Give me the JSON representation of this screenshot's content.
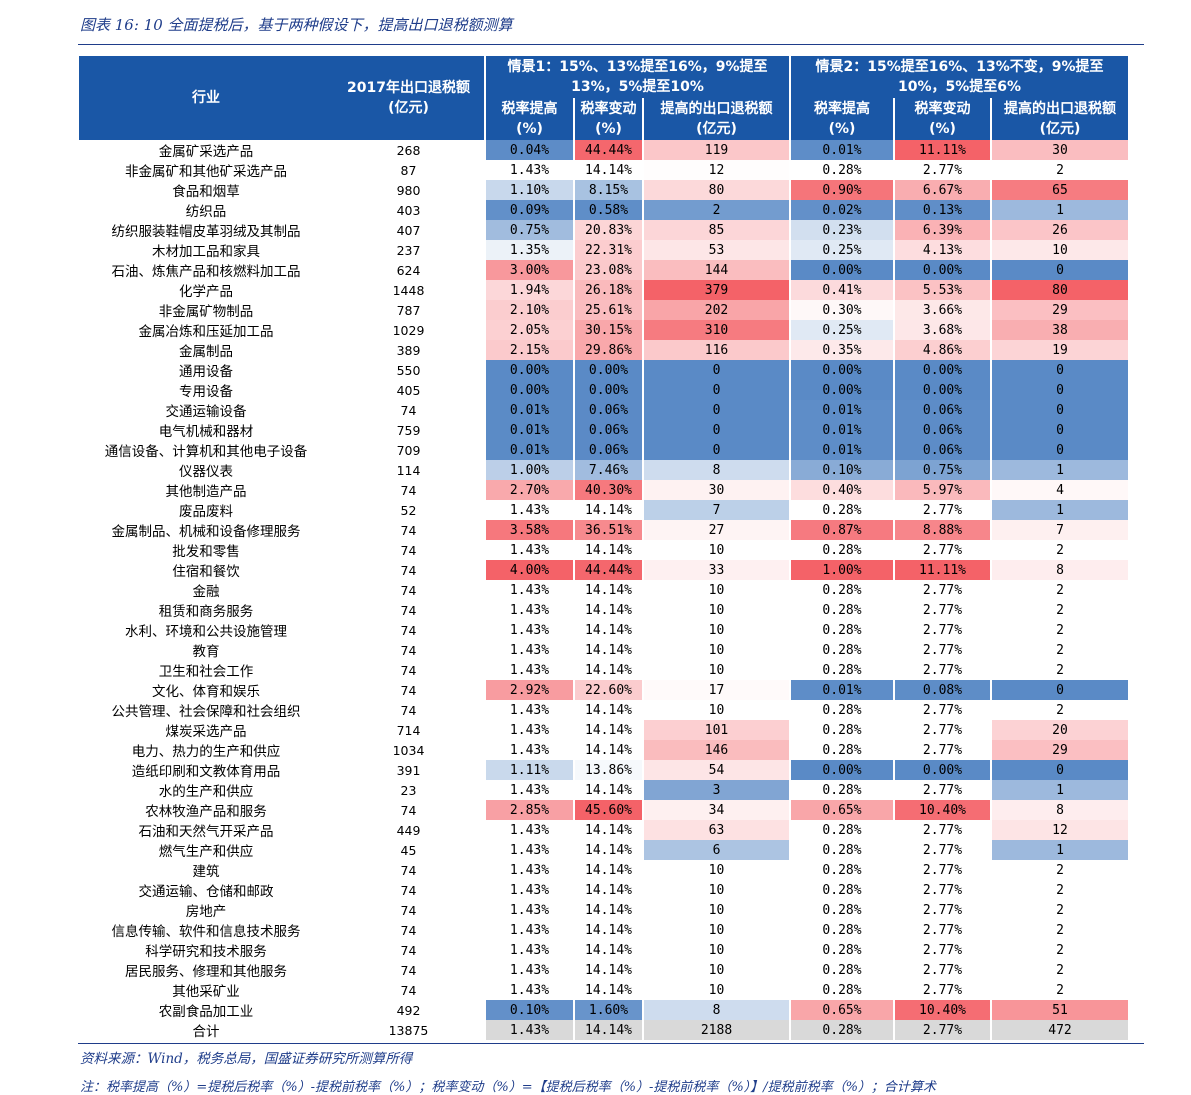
{
  "figure_title": "图表 16:  10 全面提税后，基于两种假设下，提高出口退税额测算",
  "header": {
    "industry": "行业",
    "rebate_2017_line1": "2017年出口退税额",
    "rebate_2017_line2": "(亿元)",
    "s1_title_line1": "情景1：15%、13%提至16%，9%提至",
    "s1_title_line2": "13%，5%提至10%",
    "s2_title_line1": "情景2：15%提至16%、13%不变，9%提至",
    "s2_title_line2": "10%，5%提至6%",
    "rate_up_line1": "税率提高",
    "rate_chg_line1": "税率变动",
    "rebate_up_line1": "提高的出口退税额",
    "pct_unit": "(%)",
    "yi_unit": "(亿元)"
  },
  "rows": [
    {
      "ind": "金属矿采选产品",
      "base": "268",
      "a1": "0.04%",
      "a2": "44.44%",
      "a3": "119",
      "b1": "0.01%",
      "b2": "11.11%",
      "b3": "30"
    },
    {
      "ind": "非金属矿和其他矿采选产品",
      "base": "87",
      "a1": "1.43%",
      "a2": "14.14%",
      "a3": "12",
      "b1": "0.28%",
      "b2": "2.77%",
      "b3": "2"
    },
    {
      "ind": "食品和烟草",
      "base": "980",
      "a1": "1.10%",
      "a2": "8.15%",
      "a3": "80",
      "b1": "0.90%",
      "b2": "6.67%",
      "b3": "65"
    },
    {
      "ind": "纺织品",
      "base": "403",
      "a1": "0.09%",
      "a2": "0.58%",
      "a3": "2",
      "b1": "0.02%",
      "b2": "0.13%",
      "b3": "1"
    },
    {
      "ind": "纺织服装鞋帽皮革羽绒及其制品",
      "base": "407",
      "a1": "0.75%",
      "a2": "20.83%",
      "a3": "85",
      "b1": "0.23%",
      "b2": "6.39%",
      "b3": "26"
    },
    {
      "ind": "木材加工品和家具",
      "base": "237",
      "a1": "1.35%",
      "a2": "22.31%",
      "a3": "53",
      "b1": "0.25%",
      "b2": "4.13%",
      "b3": "10"
    },
    {
      "ind": "石油、炼焦产品和核燃料加工品",
      "base": "624",
      "a1": "3.00%",
      "a2": "23.08%",
      "a3": "144",
      "b1": "0.00%",
      "b2": "0.00%",
      "b3": "0"
    },
    {
      "ind": "化学产品",
      "base": "1448",
      "a1": "1.94%",
      "a2": "26.18%",
      "a3": "379",
      "b1": "0.41%",
      "b2": "5.53%",
      "b3": "80"
    },
    {
      "ind": "非金属矿物制品",
      "base": "787",
      "a1": "2.10%",
      "a2": "25.61%",
      "a3": "202",
      "b1": "0.30%",
      "b2": "3.66%",
      "b3": "29"
    },
    {
      "ind": "金属冶炼和压延加工品",
      "base": "1029",
      "a1": "2.05%",
      "a2": "30.15%",
      "a3": "310",
      "b1": "0.25%",
      "b2": "3.68%",
      "b3": "38"
    },
    {
      "ind": "金属制品",
      "base": "389",
      "a1": "2.15%",
      "a2": "29.86%",
      "a3": "116",
      "b1": "0.35%",
      "b2": "4.86%",
      "b3": "19"
    },
    {
      "ind": "通用设备",
      "base": "550",
      "a1": "0.00%",
      "a2": "0.00%",
      "a3": "0",
      "b1": "0.00%",
      "b2": "0.00%",
      "b3": "0"
    },
    {
      "ind": "专用设备",
      "base": "405",
      "a1": "0.00%",
      "a2": "0.00%",
      "a3": "0",
      "b1": "0.00%",
      "b2": "0.00%",
      "b3": "0"
    },
    {
      "ind": "交通运输设备",
      "base": "74",
      "a1": "0.01%",
      "a2": "0.06%",
      "a3": "0",
      "b1": "0.01%",
      "b2": "0.06%",
      "b3": "0"
    },
    {
      "ind": "电气机械和器材",
      "base": "759",
      "a1": "0.01%",
      "a2": "0.06%",
      "a3": "0",
      "b1": "0.01%",
      "b2": "0.06%",
      "b3": "0"
    },
    {
      "ind": "通信设备、计算机和其他电子设备",
      "base": "709",
      "a1": "0.01%",
      "a2": "0.06%",
      "a3": "0",
      "b1": "0.01%",
      "b2": "0.06%",
      "b3": "0"
    },
    {
      "ind": "仪器仪表",
      "base": "114",
      "a1": "1.00%",
      "a2": "7.46%",
      "a3": "8",
      "b1": "0.10%",
      "b2": "0.75%",
      "b3": "1"
    },
    {
      "ind": "其他制造产品",
      "base": "74",
      "a1": "2.70%",
      "a2": "40.30%",
      "a3": "30",
      "b1": "0.40%",
      "b2": "5.97%",
      "b3": "4"
    },
    {
      "ind": "废品废料",
      "base": "52",
      "a1": "1.43%",
      "a2": "14.14%",
      "a3": "7",
      "b1": "0.28%",
      "b2": "2.77%",
      "b3": "1"
    },
    {
      "ind": "金属制品、机械和设备修理服务",
      "base": "74",
      "a1": "3.58%",
      "a2": "36.51%",
      "a3": "27",
      "b1": "0.87%",
      "b2": "8.88%",
      "b3": "7"
    },
    {
      "ind": "批发和零售",
      "base": "74",
      "a1": "1.43%",
      "a2": "14.14%",
      "a3": "10",
      "b1": "0.28%",
      "b2": "2.77%",
      "b3": "2"
    },
    {
      "ind": "住宿和餐饮",
      "base": "74",
      "a1": "4.00%",
      "a2": "44.44%",
      "a3": "33",
      "b1": "1.00%",
      "b2": "11.11%",
      "b3": "8"
    },
    {
      "ind": "金融",
      "base": "74",
      "a1": "1.43%",
      "a2": "14.14%",
      "a3": "10",
      "b1": "0.28%",
      "b2": "2.77%",
      "b3": "2"
    },
    {
      "ind": "租赁和商务服务",
      "base": "74",
      "a1": "1.43%",
      "a2": "14.14%",
      "a3": "10",
      "b1": "0.28%",
      "b2": "2.77%",
      "b3": "2"
    },
    {
      "ind": "水利、环境和公共设施管理",
      "base": "74",
      "a1": "1.43%",
      "a2": "14.14%",
      "a3": "10",
      "b1": "0.28%",
      "b2": "2.77%",
      "b3": "2"
    },
    {
      "ind": "教育",
      "base": "74",
      "a1": "1.43%",
      "a2": "14.14%",
      "a3": "10",
      "b1": "0.28%",
      "b2": "2.77%",
      "b3": "2"
    },
    {
      "ind": "卫生和社会工作",
      "base": "74",
      "a1": "1.43%",
      "a2": "14.14%",
      "a3": "10",
      "b1": "0.28%",
      "b2": "2.77%",
      "b3": "2"
    },
    {
      "ind": "文化、体育和娱乐",
      "base": "74",
      "a1": "2.92%",
      "a2": "22.60%",
      "a3": "17",
      "b1": "0.01%",
      "b2": "0.08%",
      "b3": "0"
    },
    {
      "ind": "公共管理、社会保障和社会组织",
      "base": "74",
      "a1": "1.43%",
      "a2": "14.14%",
      "a3": "10",
      "b1": "0.28%",
      "b2": "2.77%",
      "b3": "2"
    },
    {
      "ind": "煤炭采选产品",
      "base": "714",
      "a1": "1.43%",
      "a2": "14.14%",
      "a3": "101",
      "b1": "0.28%",
      "b2": "2.77%",
      "b3": "20"
    },
    {
      "ind": "电力、热力的生产和供应",
      "base": "1034",
      "a1": "1.43%",
      "a2": "14.14%",
      "a3": "146",
      "b1": "0.28%",
      "b2": "2.77%",
      "b3": "29"
    },
    {
      "ind": "造纸印刷和文教体育用品",
      "base": "391",
      "a1": "1.11%",
      "a2": "13.86%",
      "a3": "54",
      "b1": "0.00%",
      "b2": "0.00%",
      "b3": "0"
    },
    {
      "ind": "水的生产和供应",
      "base": "23",
      "a1": "1.43%",
      "a2": "14.14%",
      "a3": "3",
      "b1": "0.28%",
      "b2": "2.77%",
      "b3": "1"
    },
    {
      "ind": "农林牧渔产品和服务",
      "base": "74",
      "a1": "2.85%",
      "a2": "45.60%",
      "a3": "34",
      "b1": "0.65%",
      "b2": "10.40%",
      "b3": "8"
    },
    {
      "ind": "石油和天然气开采产品",
      "base": "449",
      "a1": "1.43%",
      "a2": "14.14%",
      "a3": "63",
      "b1": "0.28%",
      "b2": "2.77%",
      "b3": "12"
    },
    {
      "ind": "燃气生产和供应",
      "base": "45",
      "a1": "1.43%",
      "a2": "14.14%",
      "a3": "6",
      "b1": "0.28%",
      "b2": "2.77%",
      "b3": "1"
    },
    {
      "ind": "建筑",
      "base": "74",
      "a1": "1.43%",
      "a2": "14.14%",
      "a3": "10",
      "b1": "0.28%",
      "b2": "2.77%",
      "b3": "2"
    },
    {
      "ind": "交通运输、仓储和邮政",
      "base": "74",
      "a1": "1.43%",
      "a2": "14.14%",
      "a3": "10",
      "b1": "0.28%",
      "b2": "2.77%",
      "b3": "2"
    },
    {
      "ind": "房地产",
      "base": "74",
      "a1": "1.43%",
      "a2": "14.14%",
      "a3": "10",
      "b1": "0.28%",
      "b2": "2.77%",
      "b3": "2"
    },
    {
      "ind": "信息传输、软件和信息技术服务",
      "base": "74",
      "a1": "1.43%",
      "a2": "14.14%",
      "a3": "10",
      "b1": "0.28%",
      "b2": "2.77%",
      "b3": "2"
    },
    {
      "ind": "科学研究和技术服务",
      "base": "74",
      "a1": "1.43%",
      "a2": "14.14%",
      "a3": "10",
      "b1": "0.28%",
      "b2": "2.77%",
      "b3": "2"
    },
    {
      "ind": "居民服务、修理和其他服务",
      "base": "74",
      "a1": "1.43%",
      "a2": "14.14%",
      "a3": "10",
      "b1": "0.28%",
      "b2": "2.77%",
      "b3": "2"
    },
    {
      "ind": "其他采矿业",
      "base": "74",
      "a1": "1.43%",
      "a2": "14.14%",
      "a3": "10",
      "b1": "0.28%",
      "b2": "2.77%",
      "b3": "2"
    },
    {
      "ind": "农副食品加工业",
      "base": "492",
      "a1": "0.10%",
      "a2": "1.60%",
      "a3": "8",
      "b1": "0.65%",
      "b2": "10.40%",
      "b3": "51"
    },
    {
      "ind": "合计",
      "base": "13875",
      "a1": "1.43%",
      "a2": "14.14%",
      "a3": "2188",
      "b1": "0.28%",
      "b2": "2.77%",
      "b3": "472"
    }
  ],
  "source": "资料来源：Wind，税务总局，国盛证券研究所测算所得",
  "note": "注：税率提高（%）=提税后税率（%）-提税前税率（%）；税率变动（%）=【提税后税率（%）-提税前税率（%）】/提税前税率（%）；合计算术"
}
